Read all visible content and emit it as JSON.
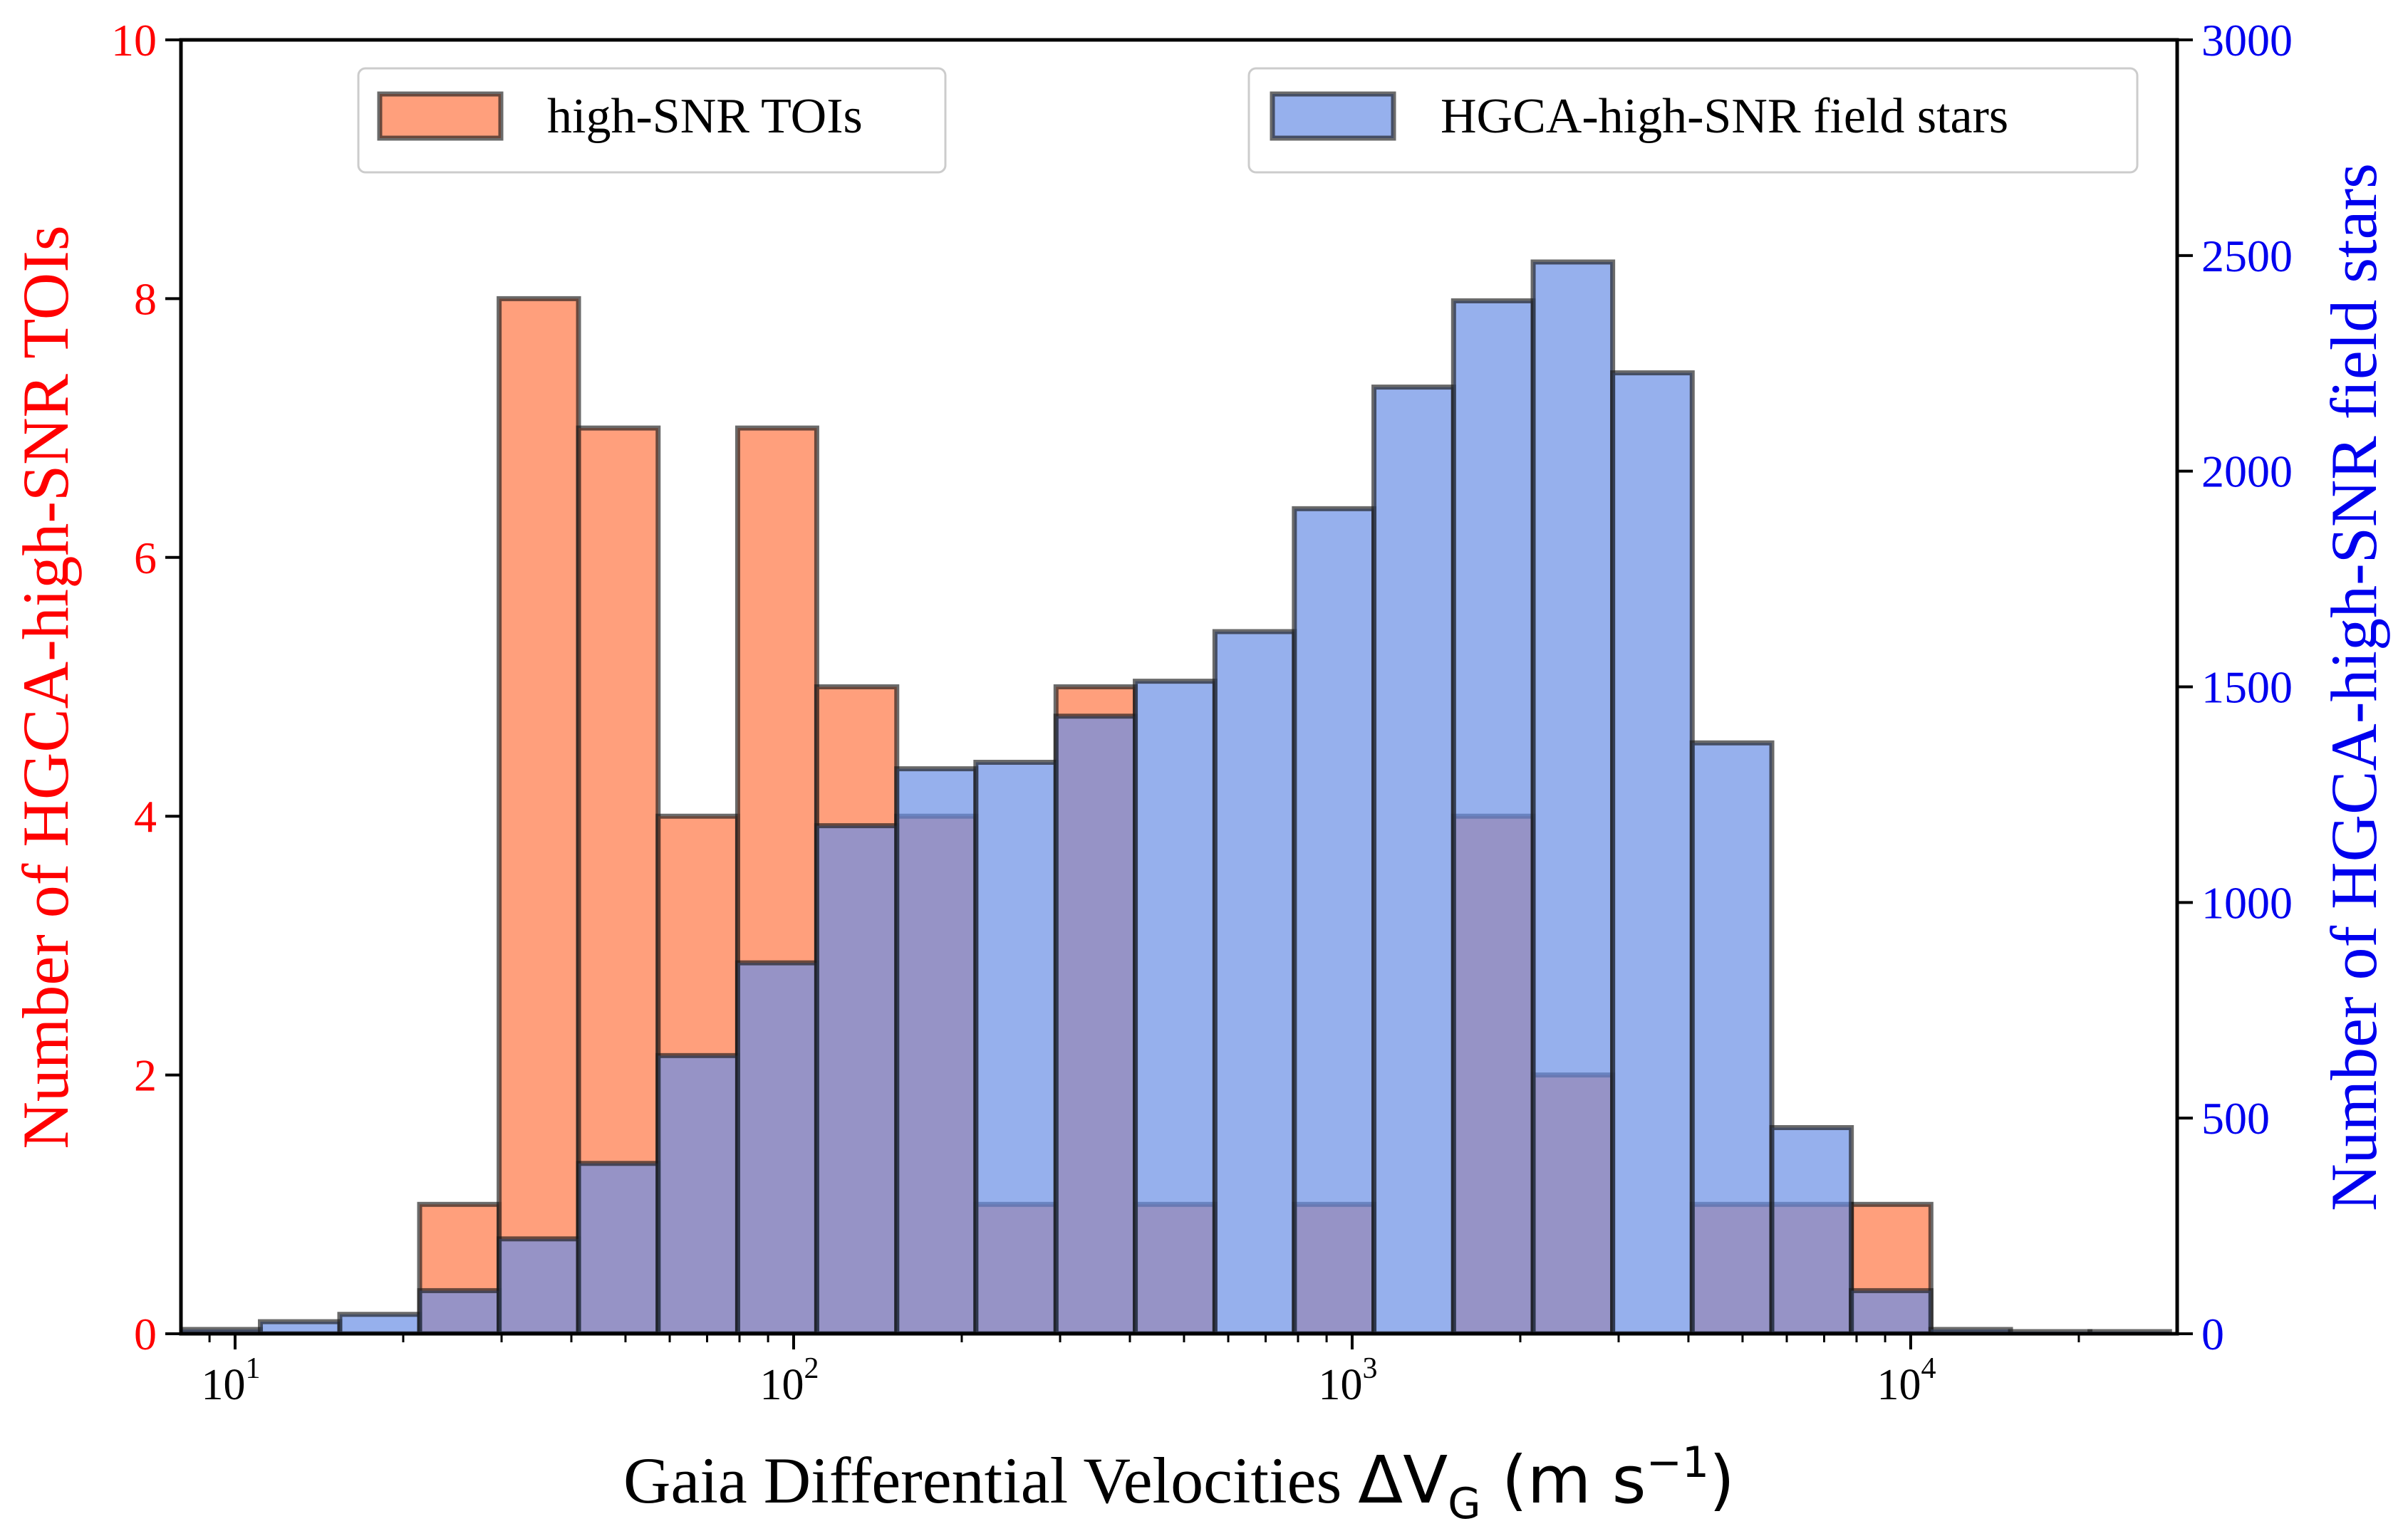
{
  "chart_data": {
    "type": "bar",
    "subtype": "overlaid-histogram-dual-axis",
    "xscale": "log",
    "xlabel_prefix": "Gaia Differential Velocities ",
    "xlabel_symbol": "ΔV",
    "xlabel_subscript": "G",
    "xlabel_units": "(m s",
    "xlabel_units_exp": "−1",
    "xlabel_units_close": ")",
    "ylabel_left": "Number of HGCA-high-SNR TOIs",
    "ylabel_right": "Number of HGCA-high-SNR field stars",
    "xlim": [
      8,
      30000
    ],
    "ylim_left": [
      0,
      10
    ],
    "ylim_right": [
      0,
      3000
    ],
    "xticks": [
      {
        "value": 10,
        "base": "10",
        "exp": "1"
      },
      {
        "value": 100,
        "base": "10",
        "exp": "2"
      },
      {
        "value": 1000,
        "base": "10",
        "exp": "3"
      },
      {
        "value": 10000,
        "base": "10",
        "exp": "4"
      }
    ],
    "yticks_left": [
      "0",
      "2",
      "4",
      "6",
      "8",
      "10"
    ],
    "yticks_right": [
      "0",
      "500",
      "1000",
      "1500",
      "2000",
      "2500",
      "3000"
    ],
    "bin_edges": [
      8.0,
      11.1,
      15.4,
      21.4,
      29.7,
      41.2,
      57.2,
      79.4,
      110,
      153,
      212,
      295,
      409,
      568,
      788,
      1094,
      1519,
      2109,
      2927,
      4063,
      5641,
      7830,
      10870,
      15090,
      20940,
      29070
    ],
    "series": [
      {
        "name": "high-SNR TOIs",
        "axis": "left",
        "color": "#ff7f50",
        "values": [
          0,
          0,
          0,
          1,
          8,
          7,
          4,
          7,
          5,
          4,
          1,
          5,
          1,
          0,
          1,
          0,
          4,
          2,
          0,
          1,
          1,
          1,
          0,
          0,
          0
        ]
      },
      {
        "name": "HGCA-high-SNR field stars",
        "axis": "right",
        "color": "#6a8ee6",
        "values": [
          10,
          28,
          45,
          100,
          220,
          395,
          645,
          860,
          1178,
          1310,
          1325,
          1432,
          1513,
          1628,
          1913,
          2195,
          2395,
          2485,
          2228,
          1370,
          478,
          100,
          10,
          5,
          5
        ]
      }
    ],
    "legend": [
      {
        "label": "high-SNR TOIs",
        "position": "upper-left"
      },
      {
        "label": "HGCA-high-SNR field stars",
        "position": "upper-right"
      }
    ],
    "colors": {
      "left_axis": "#ff0000",
      "right_axis": "#0000ee",
      "edge": "#1a1a1a"
    }
  }
}
